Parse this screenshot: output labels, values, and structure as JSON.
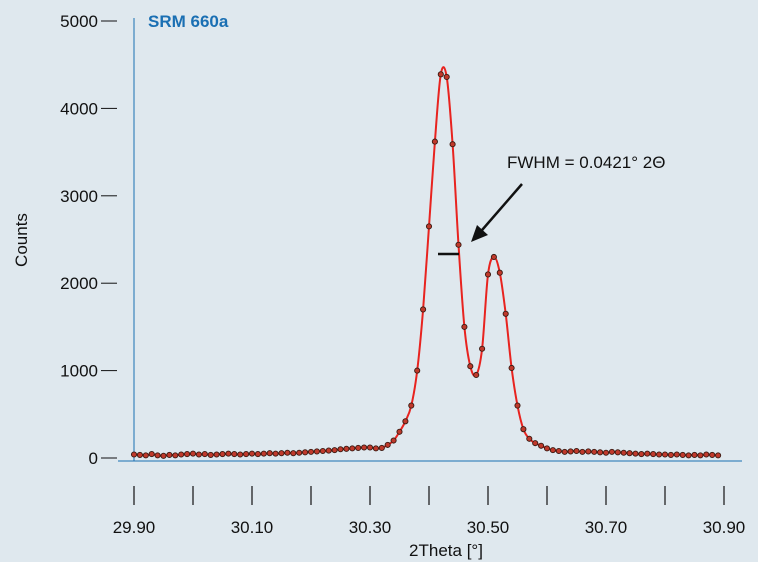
{
  "chart_data": {
    "type": "line",
    "title": "SRM 660a",
    "xlabel": "2Theta [°]",
    "ylabel": "Counts",
    "xlim": [
      29.9,
      30.9
    ],
    "ylim": [
      0,
      5000
    ],
    "x_ticks": [
      "29.90",
      "30.10",
      "30.30",
      "30.50",
      "30.70",
      "30.90"
    ],
    "y_ticks": [
      "0",
      "1000",
      "2000",
      "3000",
      "4000",
      "5000"
    ],
    "annotation": "FWHM = 0.0421° 2Θ",
    "line_color": "#e8231f",
    "marker_color": "#c0392b",
    "background_color": "#dfe8ee",
    "title_color": "#1a6fb3",
    "series": [
      {
        "x": [
          29.9,
          29.91,
          29.92,
          29.93,
          29.94,
          29.95,
          29.96,
          29.97,
          29.98,
          29.99,
          30.0,
          30.01,
          30.02,
          30.03,
          30.04,
          30.05,
          30.06,
          30.07,
          30.08,
          30.09,
          30.1,
          30.11,
          30.12,
          30.13,
          30.14,
          30.15,
          30.16,
          30.17,
          30.18,
          30.19,
          30.2,
          30.21,
          30.22,
          30.23,
          30.24,
          30.25,
          30.26,
          30.27,
          30.28,
          30.29,
          30.3,
          30.31,
          30.32,
          30.33,
          30.34,
          30.35,
          30.36,
          30.37,
          30.38,
          30.39,
          30.4,
          30.41,
          30.42,
          30.43,
          30.44,
          30.45,
          30.46,
          30.47,
          30.48,
          30.49,
          30.5,
          30.51,
          30.52,
          30.53,
          30.54,
          30.55,
          30.56,
          30.57,
          30.58,
          30.59,
          30.6,
          30.61,
          30.62,
          30.63,
          30.64,
          30.65,
          30.66,
          30.67,
          30.68,
          30.69,
          30.7,
          30.71,
          30.72,
          30.73,
          30.74,
          30.75,
          30.76,
          30.77,
          30.78,
          30.79,
          30.8,
          30.81,
          30.82,
          30.83,
          30.84,
          30.85,
          30.86,
          30.87,
          30.88,
          30.89
        ],
        "y": [
          40,
          35,
          30,
          45,
          30,
          25,
          35,
          30,
          40,
          45,
          50,
          40,
          45,
          35,
          40,
          45,
          50,
          45,
          40,
          45,
          50,
          45,
          50,
          55,
          50,
          55,
          60,
          55,
          60,
          65,
          70,
          75,
          80,
          85,
          90,
          100,
          105,
          110,
          115,
          120,
          120,
          110,
          115,
          150,
          200,
          300,
          420,
          600,
          1000,
          1700,
          2650,
          3620,
          4390,
          4360,
          3590,
          2440,
          1500,
          1050,
          950,
          1250,
          2100,
          2300,
          2120,
          1650,
          1030,
          600,
          330,
          220,
          170,
          140,
          110,
          90,
          80,
          70,
          75,
          80,
          70,
          75,
          70,
          65,
          60,
          70,
          65,
          60,
          55,
          50,
          45,
          50,
          45,
          40,
          40,
          35,
          40,
          35,
          30,
          35,
          30,
          40,
          35,
          30
        ]
      }
    ]
  }
}
